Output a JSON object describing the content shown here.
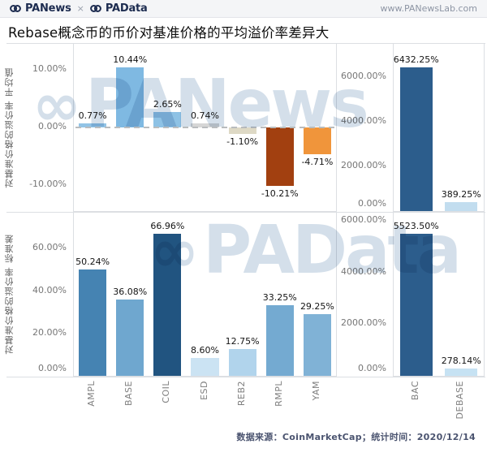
{
  "header": {
    "brand_left": "PANews",
    "brand_sep": "×",
    "brand_right": "PAData",
    "url": "www.PANewsLab.com",
    "brand_color": "#1d2c50"
  },
  "title": "Rebase概念币的币价对基准价格的平均溢价率差异大",
  "watermarks": {
    "top": "PANews",
    "bottom": "PAData"
  },
  "footer": {
    "note": "数据来源：CoinMarketCap；统计时间：2020/12/14"
  },
  "chart_data": [
    {
      "type": "bar",
      "position": "top-left",
      "ylabel": "对基准价格的溢价率 平均值",
      "categories": [
        "AMPL",
        "BASE",
        "COIL",
        "ESD",
        "REB2",
        "RMPL",
        "YAM"
      ],
      "values": [
        0.77,
        10.44,
        2.65,
        0.74,
        -1.1,
        -10.21,
        -4.71
      ],
      "value_labels": [
        "0.77%",
        "10.44%",
        "2.65%",
        "0.74%",
        "-1.10%",
        "-10.21%",
        "-4.71%"
      ],
      "colors": [
        "#92c4e6",
        "#7fb9e2",
        "#8ec2e5",
        "#d6d6d6",
        "#ded9c5",
        "#a24010",
        "#f0953b"
      ],
      "yticks": [
        10,
        0,
        -10
      ],
      "ytick_labels": [
        "10.00%",
        "0.00%",
        "-10.00%"
      ],
      "ylim": [
        -14.6,
        14.6
      ],
      "zero_line_dashed": true,
      "grid": false
    },
    {
      "type": "bar",
      "position": "top-right",
      "ylabel": "",
      "categories": [
        "BAC",
        "DEBASE"
      ],
      "values": [
        6432.25,
        389.25
      ],
      "value_labels": [
        "6432.25%",
        "389.25%"
      ],
      "colors": [
        "#2c5d8c",
        "#c2ddef"
      ],
      "yticks": [
        6000,
        4000,
        2000,
        0
      ],
      "ytick_labels": [
        "6000.00%",
        "4000.00%",
        "2000.00%",
        "0.00%"
      ],
      "ylim": [
        0,
        7500
      ],
      "zero_line_dashed": false,
      "grid": false
    },
    {
      "type": "bar",
      "position": "bottom-left",
      "ylabel": "对基准价格的溢价率 标准差",
      "categories": [
        "AMPL",
        "BASE",
        "COIL",
        "ESD",
        "REB2",
        "RMPL",
        "YAM"
      ],
      "values": [
        50.24,
        36.08,
        66.96,
        8.6,
        12.75,
        33.25,
        29.25
      ],
      "value_labels": [
        "50.24%",
        "36.08%",
        "66.96%",
        "8.60%",
        "12.75%",
        "33.25%",
        "29.25%"
      ],
      "colors": [
        "#4583b2",
        "#6fa7cf",
        "#215480",
        "#cbe3f3",
        "#b1d4ec",
        "#74aad1",
        "#80b2d6"
      ],
      "yticks": [
        60,
        40,
        20,
        0
      ],
      "ytick_labels": [
        "60.00%",
        "40.00%",
        "20.00%",
        "0.00%"
      ],
      "ylim": [
        0,
        77
      ],
      "zero_line_dashed": false,
      "grid": false
    },
    {
      "type": "bar",
      "position": "bottom-right",
      "ylabel": "",
      "categories": [
        "BAC",
        "DEBASE"
      ],
      "values": [
        5523.5,
        278.14
      ],
      "value_labels": [
        "5523.50%",
        "278.14%"
      ],
      "colors": [
        "#2c5d8c",
        "#c6e2f3"
      ],
      "yticks": [
        6000,
        4000,
        2000,
        0
      ],
      "ytick_labels": [
        "6000.00%",
        "4000.00%",
        "2000.00%",
        "0.00%"
      ],
      "ylim": [
        0,
        6330
      ],
      "zero_line_dashed": false,
      "grid": false
    }
  ]
}
